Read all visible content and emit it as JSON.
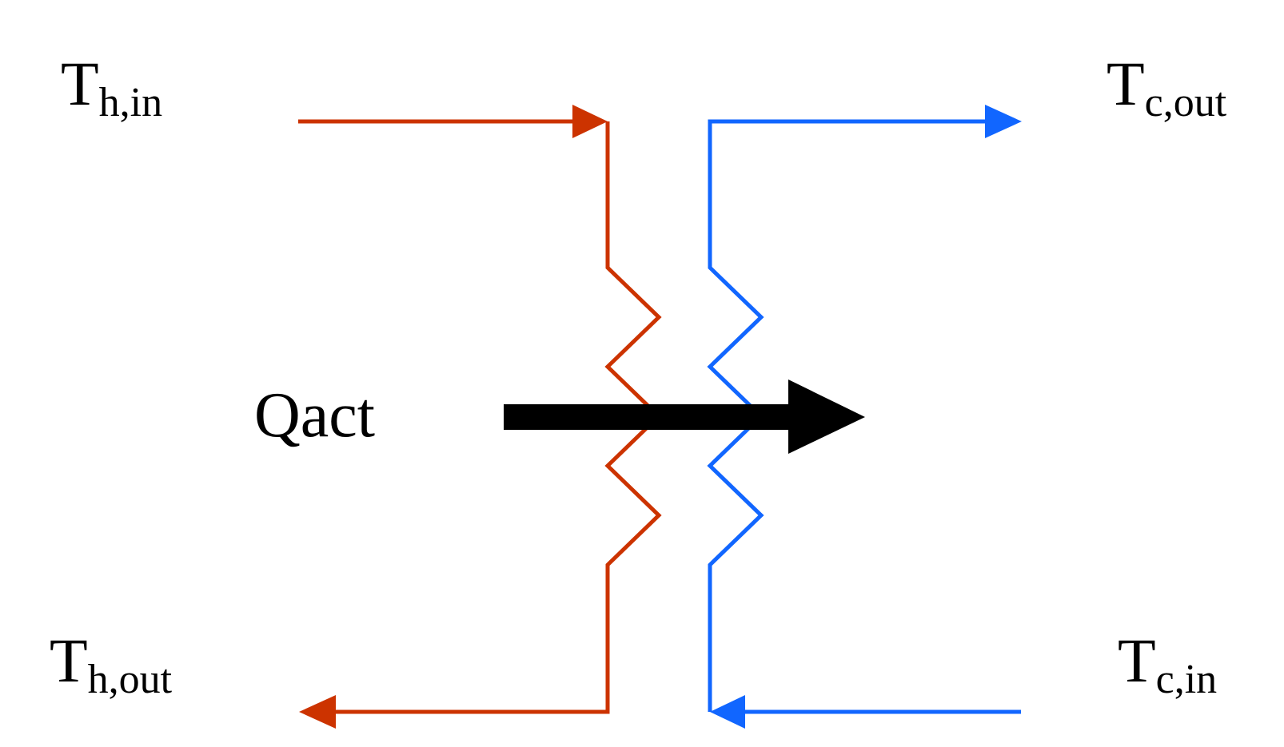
{
  "colors": {
    "hot": "#cc3300",
    "cold": "#1166ff",
    "heat_arrow": "#000000"
  },
  "labels": {
    "th_in": {
      "symbol": "T",
      "sub": "h,in"
    },
    "th_out": {
      "symbol": "T",
      "sub": "h,out"
    },
    "tc_out": {
      "symbol": "T",
      "sub": "c,out"
    },
    "tc_in": {
      "symbol": "T",
      "sub": "c,in"
    },
    "heat": "Qact"
  }
}
